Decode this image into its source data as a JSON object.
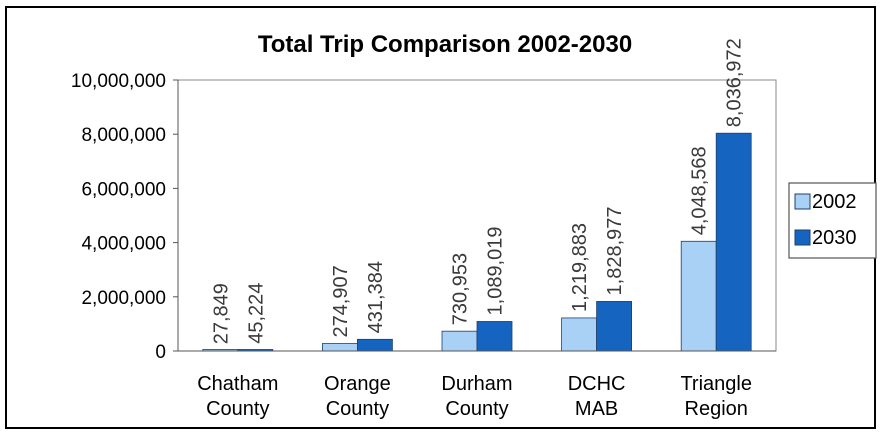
{
  "chart_data": {
    "type": "bar",
    "title": "Total Trip Comparison 2002-2030",
    "categories": [
      [
        "Chatham",
        "County"
      ],
      [
        "Orange",
        "County"
      ],
      [
        "Durham",
        "County"
      ],
      [
        "DCHC",
        "MAB"
      ],
      [
        "Triangle",
        "Region"
      ]
    ],
    "series": [
      {
        "name": "2002",
        "color": "#a9d0f5",
        "values": [
          27849,
          274907,
          730953,
          1219883,
          4048568
        ],
        "labels": [
          "27,849",
          "274,907",
          "730,953",
          "1,219,883",
          "4,048,568"
        ]
      },
      {
        "name": "2030",
        "color": "#1565c0",
        "values": [
          45224,
          431384,
          1089019,
          1828977,
          8036972
        ],
        "labels": [
          "45,224",
          "431,384",
          "1,089,019",
          "1,828,977",
          "8,036,972"
        ]
      }
    ],
    "ylim": [
      0,
      10000000
    ],
    "yticks": [
      "0",
      "2,000,000",
      "4,000,000",
      "6,000,000",
      "8,000,000",
      "10,000,000"
    ],
    "ytick_values": [
      0,
      2000000,
      4000000,
      6000000,
      8000000,
      10000000
    ],
    "legend_position": "right",
    "data_labels": "rotated vertical; inside bar in white when bar is tall"
  }
}
